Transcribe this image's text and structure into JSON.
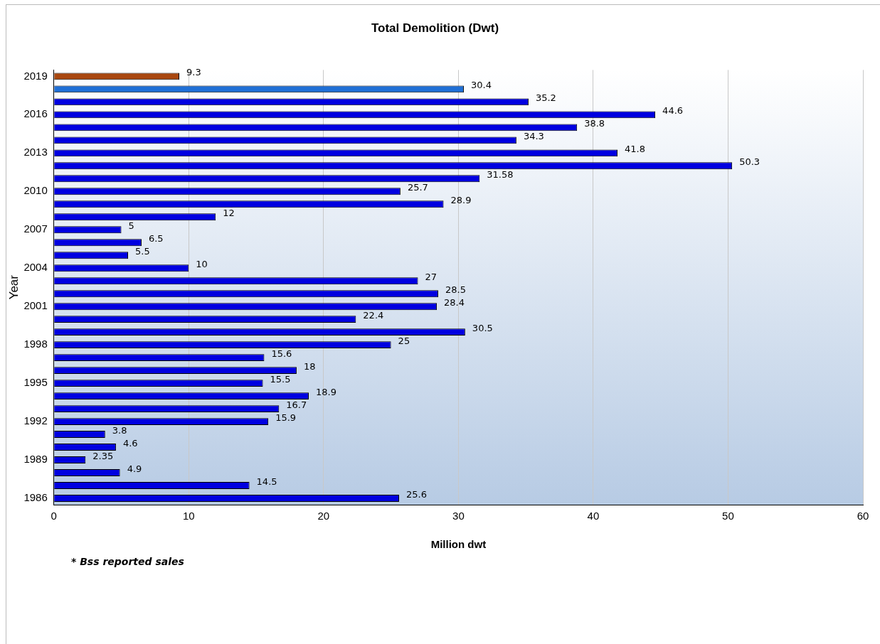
{
  "chart_data": {
    "type": "bar",
    "orientation": "horizontal",
    "title": "Total Demolition (Dwt)",
    "xlabel": "Million dwt",
    "ylabel": "Year",
    "categories": [
      "2019",
      null,
      null,
      "2016",
      null,
      null,
      "2013",
      null,
      null,
      "2010",
      null,
      null,
      "2007",
      null,
      null,
      "2004",
      null,
      null,
      "2001",
      null,
      null,
      "1998",
      null,
      null,
      "1995",
      null,
      null,
      "1992",
      null,
      null,
      "1989",
      null,
      null,
      "1986"
    ],
    "values": [
      9.3,
      30.4,
      35.2,
      44.6,
      38.8,
      34.3,
      41.8,
      50.3,
      31.58,
      25.7,
      28.9,
      12,
      5,
      6.5,
      5.5,
      10,
      27,
      28.5,
      28.4,
      22.4,
      30.5,
      25,
      15.6,
      18,
      15.5,
      18.9,
      16.7,
      15.9,
      3.8,
      4.6,
      2.35,
      4.9,
      14.5,
      25.6
    ],
    "colors": [
      "#a9470f",
      "#1f6fd6",
      "#0000e0",
      "#0000e0",
      "#0000e0",
      "#0000e0",
      "#0000e0",
      "#0000e0",
      "#0000e0",
      "#0000e0",
      "#0000e0",
      "#0000e0",
      "#0000e0",
      "#0000e0",
      "#0000e0",
      "#0000e0",
      "#0000e0",
      "#0000e0",
      "#0000e0",
      "#0000e0",
      "#0000e0",
      "#0000e0",
      "#0000e0",
      "#0000e0",
      "#0000e0",
      "#0000e0",
      "#0000e0",
      "#0000e0",
      "#0000e0",
      "#0000e0",
      "#0000e0",
      "#0000e0",
      "#0000e0",
      "#0000e0"
    ],
    "xlim": [
      0,
      60
    ],
    "xticks": [
      0,
      10,
      20,
      30,
      40,
      50,
      60
    ],
    "grid": "x",
    "legend": false,
    "data_labels": true,
    "annotations": [
      "* Bss reported sales"
    ]
  }
}
